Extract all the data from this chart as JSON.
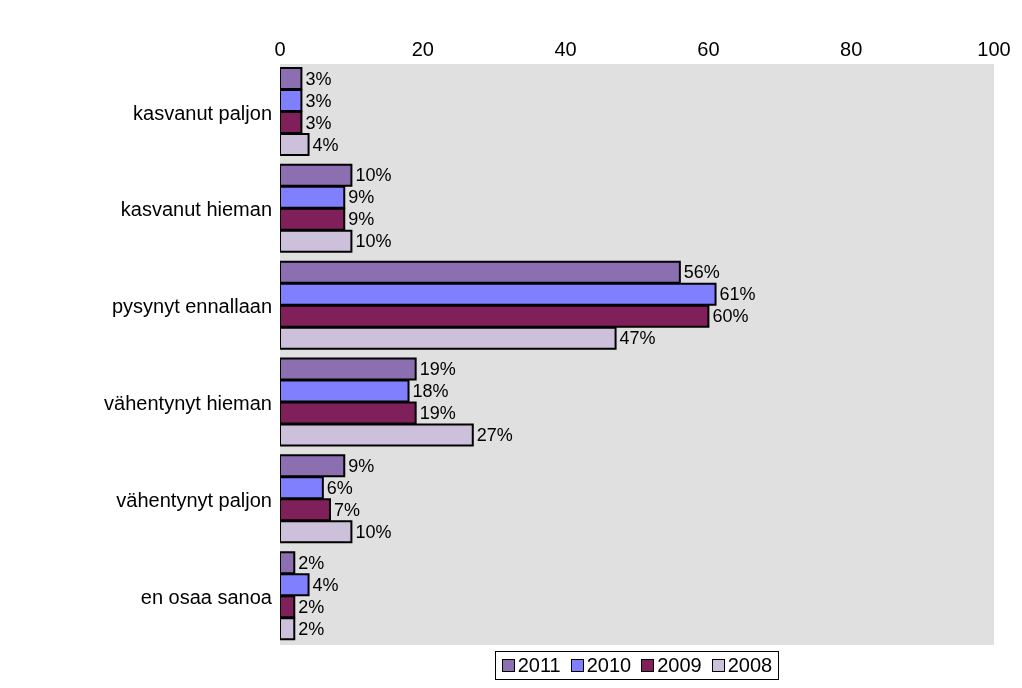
{
  "chart_data": {
    "type": "bar",
    "orientation": "horizontal",
    "categories": [
      "kasvanut paljon",
      "kasvanut hieman",
      "pysynyt ennallaan",
      "vähentynyt hieman",
      "vähentynyt paljon",
      "en osaa sanoa"
    ],
    "xlim": [
      0,
      100
    ],
    "xticks": [
      0,
      20,
      40,
      60,
      80,
      100
    ],
    "legend": "bottom",
    "series": [
      {
        "name": "2011",
        "color": "#8c6fb0",
        "values": [
          3,
          10,
          56,
          19,
          9,
          2
        ],
        "value_labels": [
          "3%",
          "10%",
          "56%",
          "19%",
          "9%",
          "2%"
        ]
      },
      {
        "name": "2010",
        "color": "#8080ff",
        "values": [
          3,
          9,
          61,
          18,
          6,
          4
        ],
        "value_labels": [
          "3%",
          "9%",
          "61%",
          "18%",
          "6%",
          "4%"
        ]
      },
      {
        "name": "2009",
        "color": "#80205a",
        "values": [
          3,
          9,
          60,
          19,
          7,
          2
        ],
        "value_labels": [
          "3%",
          "9%",
          "60%",
          "19%",
          "7%",
          "2%"
        ]
      },
      {
        "name": "2008",
        "color": "#ccc0da",
        "values": [
          4,
          10,
          47,
          27,
          10,
          2
        ],
        "value_labels": [
          "4%",
          "10%",
          "47%",
          "27%",
          "10%",
          "2%"
        ]
      }
    ]
  }
}
